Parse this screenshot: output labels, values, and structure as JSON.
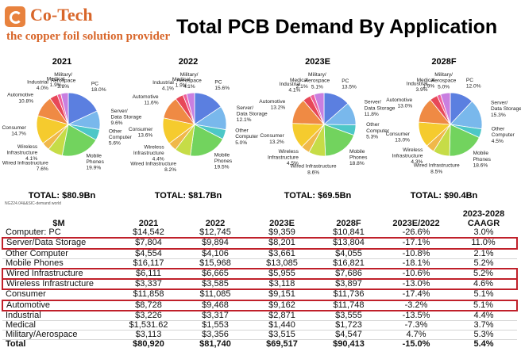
{
  "header": {
    "logo_name": "Co-Tech",
    "logo_tagline": "the copper foil solution provider",
    "title": "Total PCB Demand By Application"
  },
  "source_note": "NG224.04&&SIC-demand world",
  "chart_data": [
    {
      "type": "pie",
      "title": "2021",
      "total": "TOTAL: $80.9Bn",
      "slices": [
        {
          "name": "PC",
          "label": "PC\n18.0%",
          "value": 18.0,
          "color": "#5b7fe0"
        },
        {
          "name": "Server/Data Storage",
          "label": "Server/\nData Storage\n9.6%",
          "value": 9.6,
          "color": "#79b8ec"
        },
        {
          "name": "Other Computer",
          "label": "Other\nComputer\n5.6%",
          "value": 5.6,
          "color": "#4dc7c7"
        },
        {
          "name": "Mobile Phones",
          "label": "Mobile\nPhones\n19.9%",
          "value": 19.9,
          "color": "#72d35e"
        },
        {
          "name": "Wired Infrastructure",
          "label": "Wired Infrastructure\n7.6%",
          "value": 7.6,
          "color": "#c6dc47"
        },
        {
          "name": "Wireless Infrastructure",
          "label": "Wireless\nInfrastructure\n4.1%",
          "value": 4.1,
          "color": "#f0b84a"
        },
        {
          "name": "Consumer",
          "label": "Consumer\n14.7%",
          "value": 14.7,
          "color": "#f5cb2e"
        },
        {
          "name": "Automotive",
          "label": "Automotive\n10.8%",
          "value": 10.8,
          "color": "#ef8a44"
        },
        {
          "name": "Industrial",
          "label": "Industrial\n4.0%",
          "value": 4.0,
          "color": "#e74858"
        },
        {
          "name": "Medical",
          "label": "Medical\n1.9%",
          "value": 1.9,
          "color": "#ee5f9c"
        },
        {
          "name": "Military/Aerospace",
          "label": "Military/\nAerospace\n3.8%",
          "value": 3.8,
          "color": "#c97fe0"
        }
      ]
    },
    {
      "type": "pie",
      "title": "2022",
      "total": "TOTAL: $81.7Bn",
      "slices": [
        {
          "name": "PC",
          "label": "PC\n15.6%",
          "value": 15.6,
          "color": "#5b7fe0"
        },
        {
          "name": "Server/Data Storage",
          "label": "Server/\nData Storage\n12.1%",
          "value": 12.1,
          "color": "#79b8ec"
        },
        {
          "name": "Other Computer",
          "label": "Other\nComputer\n5.0%",
          "value": 5.0,
          "color": "#4dc7c7"
        },
        {
          "name": "Mobile Phones",
          "label": "Mobile\nPhones\n19.5%",
          "value": 19.5,
          "color": "#72d35e"
        },
        {
          "name": "Wired Infrastructure",
          "label": "Wired Infrastructure\n8.2%",
          "value": 8.2,
          "color": "#c6dc47"
        },
        {
          "name": "Wireless Infrastructure",
          "label": "Wireless\nInfrastructure\n4.4%",
          "value": 4.4,
          "color": "#f0b84a"
        },
        {
          "name": "Consumer",
          "label": "Consumer\n13.6%",
          "value": 13.6,
          "color": "#f5cb2e"
        },
        {
          "name": "Automotive",
          "label": "Automotive\n11.6%",
          "value": 11.6,
          "color": "#ef8a44"
        },
        {
          "name": "Industrial",
          "label": "Industrial\n4.1%",
          "value": 4.1,
          "color": "#e74858"
        },
        {
          "name": "Medical",
          "label": "Medical\n1.9%",
          "value": 1.9,
          "color": "#ee5f9c"
        },
        {
          "name": "Military/Aerospace",
          "label": "Military/\nAerospace\n4.1%",
          "value": 4.1,
          "color": "#c97fe0"
        }
      ]
    },
    {
      "type": "pie",
      "title": "2023E",
      "total": "TOTAL: $69.5Bn",
      "slices": [
        {
          "name": "PC",
          "label": "PC\n13.5%",
          "value": 13.5,
          "color": "#5b7fe0"
        },
        {
          "name": "Server/Data Storage",
          "label": "Server/\nData Storage\n11.8%",
          "value": 11.8,
          "color": "#79b8ec"
        },
        {
          "name": "Other Computer",
          "label": "Other\nComputer\n5.3%",
          "value": 5.3,
          "color": "#4dc7c7"
        },
        {
          "name": "Mobile Phones",
          "label": "Mobile\nPhones\n18.8%",
          "value": 18.8,
          "color": "#72d35e"
        },
        {
          "name": "Wired Infrastructure",
          "label": "Wired Infrastructure\n8.6%",
          "value": 8.6,
          "color": "#c6dc47"
        },
        {
          "name": "Wireless Infrastructure",
          "label": "Wireless\nInfrastructure\n4.5%",
          "value": 4.5,
          "color": "#f0b84a"
        },
        {
          "name": "Consumer",
          "label": "Consumer\n13.2%",
          "value": 13.2,
          "color": "#f5cb2e"
        },
        {
          "name": "Automotive",
          "label": "Automotive\n13.2%",
          "value": 13.2,
          "color": "#ef8a44"
        },
        {
          "name": "Industrial",
          "label": "Industrial\n4.1%",
          "value": 4.1,
          "color": "#e74858"
        },
        {
          "name": "Medical",
          "label": "Medical\n2.1%",
          "value": 2.1,
          "color": "#ee5f9c"
        },
        {
          "name": "Military/Aerospace",
          "label": "Military/\nAerospace\n5.1%",
          "value": 5.1,
          "color": "#c97fe0"
        }
      ]
    },
    {
      "type": "pie",
      "title": "2028F",
      "total": "TOTAL: $90.4Bn",
      "slices": [
        {
          "name": "PC",
          "label": "PC\n12.0%",
          "value": 12.0,
          "color": "#5b7fe0"
        },
        {
          "name": "Server/Data Storage",
          "label": "Server/\nData Storage\n15.3%",
          "value": 15.3,
          "color": "#79b8ec"
        },
        {
          "name": "Other Computer",
          "label": "Other\nComputer\n4.5%",
          "value": 4.5,
          "color": "#4dc7c7"
        },
        {
          "name": "Mobile Phones",
          "label": "Mobile\nPhones\n18.6%",
          "value": 18.6,
          "color": "#72d35e"
        },
        {
          "name": "Wired Infrastructure",
          "label": "Wired Infrastructure\n8.5%",
          "value": 8.5,
          "color": "#c6dc47"
        },
        {
          "name": "Wireless Infrastructure",
          "label": "Wireless\nInfrastructure\n4.3%",
          "value": 4.3,
          "color": "#f0b84a"
        },
        {
          "name": "Consumer",
          "label": "Consumer\n13.0%",
          "value": 13.0,
          "color": "#f5cb2e"
        },
        {
          "name": "Automotive",
          "label": "Automotive\n13.0%",
          "value": 13.0,
          "color": "#ef8a44"
        },
        {
          "name": "Industrial",
          "label": "Industrial\n3.9%",
          "value": 3.9,
          "color": "#e74858"
        },
        {
          "name": "Medical",
          "label": "Medical\n1.9%",
          "value": 1.9,
          "color": "#ee5f9c"
        },
        {
          "name": "Military/Aerospace",
          "label": "Military/\nAerospace\n5.0%",
          "value": 5.0,
          "color": "#c97fe0"
        }
      ]
    },
    {
      "type": "table",
      "cagr_group_header": "2023-2028",
      "columns": [
        "$M",
        "2021",
        "2022",
        "2023E",
        "2028F",
        "2023E/2022",
        "CAAGR"
      ],
      "rows": [
        {
          "cells": [
            "Computer: PC",
            "$14,542",
            "$12,745",
            "$9,359",
            "$10,841",
            "-26.6%",
            "3.0%"
          ],
          "highlight": false
        },
        {
          "cells": [
            "Server/Data Storage",
            "$7,804",
            "$9,894",
            "$8,201",
            "$13,804",
            "-17.1%",
            "11.0%"
          ],
          "highlight": true
        },
        {
          "cells": [
            "Other Computer",
            "$4,554",
            "$4,106",
            "$3,661",
            "$4,055",
            "-10.8%",
            "2.1%"
          ],
          "highlight": false
        },
        {
          "cells": [
            "Mobile Phones",
            "$16,117",
            "$15,968",
            "$13,085",
            "$16,821",
            "-18.1%",
            "5.2%"
          ],
          "highlight": false
        },
        {
          "cells": [
            "Wired Infrastructure",
            "$6,111",
            "$6,665",
            "$5,955",
            "$7,686",
            "-10.6%",
            "5.2%"
          ],
          "highlight": true
        },
        {
          "cells": [
            "Wireless Infrastructure",
            "$3,337",
            "$3,585",
            "$3,118",
            "$3,897",
            "-13.0%",
            "4.6%"
          ],
          "highlight": true
        },
        {
          "cells": [
            "Consumer",
            "$11,858",
            "$11,085",
            "$9,151",
            "$11,736",
            "-17.4%",
            "5.1%"
          ],
          "highlight": false
        },
        {
          "cells": [
            "Automotive",
            "$8,728",
            "$9,468",
            "$9,162",
            "$11,748",
            "-3.2%",
            "5.1%"
          ],
          "highlight": true
        },
        {
          "cells": [
            "Industrial",
            "$3,226",
            "$3,317",
            "$2,871",
            "$3,555",
            "-13.5%",
            "4.4%"
          ],
          "highlight": false
        },
        {
          "cells": [
            "Medical",
            "$1,531.62",
            "$1,553",
            "$1,440",
            "$1,723",
            "-7.3%",
            "3.7%"
          ],
          "highlight": false
        },
        {
          "cells": [
            "Military/Aerospace",
            "$3,113",
            "$3,356",
            "$3,515",
            "$4,547",
            "4.7%",
            "5.3%"
          ],
          "highlight": false
        },
        {
          "cells": [
            "Total",
            "$80,920",
            "$81,740",
            "$69,517",
            "$90,413",
            "-15.0%",
            "5.4%"
          ],
          "highlight": false,
          "total": true
        }
      ]
    }
  ]
}
